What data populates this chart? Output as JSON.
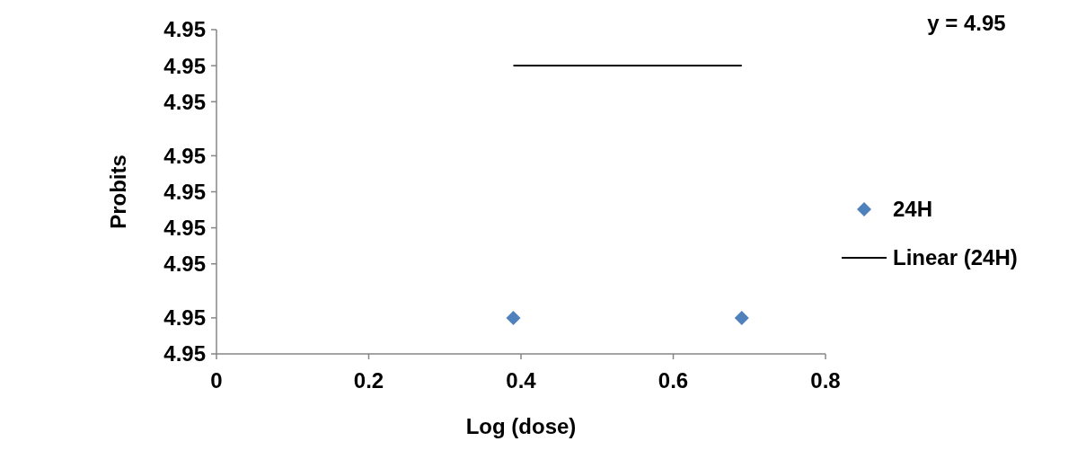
{
  "chart_data": {
    "type": "scatter",
    "xlabel": "Log (dose)",
    "ylabel": "Probits",
    "xlim": [
      0,
      0.8
    ],
    "xticks": [
      0,
      0.2,
      0.4,
      0.6,
      0.8
    ],
    "ylim": [
      4.95,
      4.9500009
    ],
    "yticks": [
      {
        "value": 4.95,
        "label": "4.95"
      },
      {
        "value": 4.9500001,
        "label": "4.95"
      },
      {
        "value": 4.95000025,
        "label": "4.95"
      },
      {
        "value": 4.95000035,
        "label": "4.95"
      },
      {
        "value": 4.95000045,
        "label": "4.95"
      },
      {
        "value": 4.95000055,
        "label": "4.95"
      },
      {
        "value": 4.9500007,
        "label": "4.95"
      },
      {
        "value": 4.9500008,
        "label": "4.95"
      },
      {
        "value": 4.9500009,
        "label": "4.95"
      }
    ],
    "x": [
      0.39,
      0.69
    ],
    "series": [
      {
        "name": "24H",
        "color": "#4f81bd",
        "marker": "diamond",
        "values": [
          4.9500001,
          4.9500001
        ]
      },
      {
        "name": "Linear (24H)",
        "type": "line",
        "color": "#000000",
        "line_style": "solid",
        "marker": "none",
        "values": [
          4.9500008,
          4.9500008
        ]
      }
    ],
    "annotations": [
      "y = 4.95"
    ],
    "legend": "right"
  }
}
